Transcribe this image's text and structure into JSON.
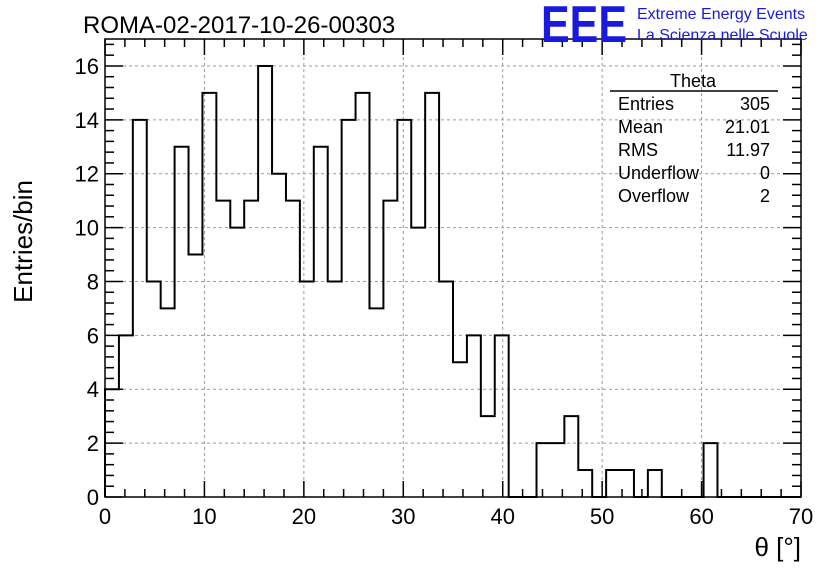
{
  "chart_data": {
    "type": "histogram",
    "title": "ROMA-02-2017-10-26-00303",
    "xlabel": "θ [°]",
    "ylabel": "Entries/bin",
    "xlim": [
      0,
      70
    ],
    "ylim": [
      0,
      17
    ],
    "grid": true,
    "bin_width": 1.4,
    "x_ticks": [
      0,
      10,
      20,
      30,
      40,
      50,
      60,
      70
    ],
    "y_ticks": [
      0,
      2,
      4,
      6,
      8,
      10,
      12,
      14,
      16
    ],
    "bin_edges": [
      0,
      1.4,
      2.8,
      4.2,
      5.6,
      7.0,
      8.4,
      9.8,
      11.2,
      12.6,
      14.0,
      15.4,
      16.8,
      18.2,
      19.6,
      21.0,
      22.4,
      23.8,
      25.2,
      26.6,
      28.0,
      29.4,
      30.8,
      32.2,
      33.6,
      35.0,
      36.4,
      37.8,
      39.2,
      40.6,
      42.0,
      43.4,
      44.8,
      46.2,
      47.6,
      49.0,
      50.4,
      51.8,
      53.2,
      54.6,
      56.0,
      57.4,
      58.8,
      60.2,
      61.6,
      63.0,
      64.4,
      65.8,
      67.2,
      68.6,
      70.0
    ],
    "values": [
      4,
      6,
      14,
      8,
      7,
      13,
      9,
      15,
      11,
      10,
      11,
      16,
      12,
      11,
      8,
      13,
      8,
      14,
      15,
      7,
      11,
      14,
      10,
      15,
      8,
      5,
      6,
      3,
      6,
      0,
      0,
      2,
      2,
      3,
      1,
      0,
      1,
      1,
      0,
      1,
      0,
      0,
      0,
      2,
      0,
      0,
      0,
      0,
      0,
      0
    ],
    "stats": {
      "name": "Theta",
      "rows": [
        {
          "label": "Entries",
          "value": "305"
        },
        {
          "label": "Mean",
          "value": "21.01"
        },
        {
          "label": "RMS",
          "value": "11.97"
        },
        {
          "label": "Underflow",
          "value": "0"
        },
        {
          "label": "Overflow",
          "value": "2"
        }
      ]
    }
  },
  "logo": {
    "mark": "EEE",
    "line1": "Extreme Energy Events",
    "line2": "La Scienza nelle Scuole",
    "color": "#1a1adf"
  }
}
